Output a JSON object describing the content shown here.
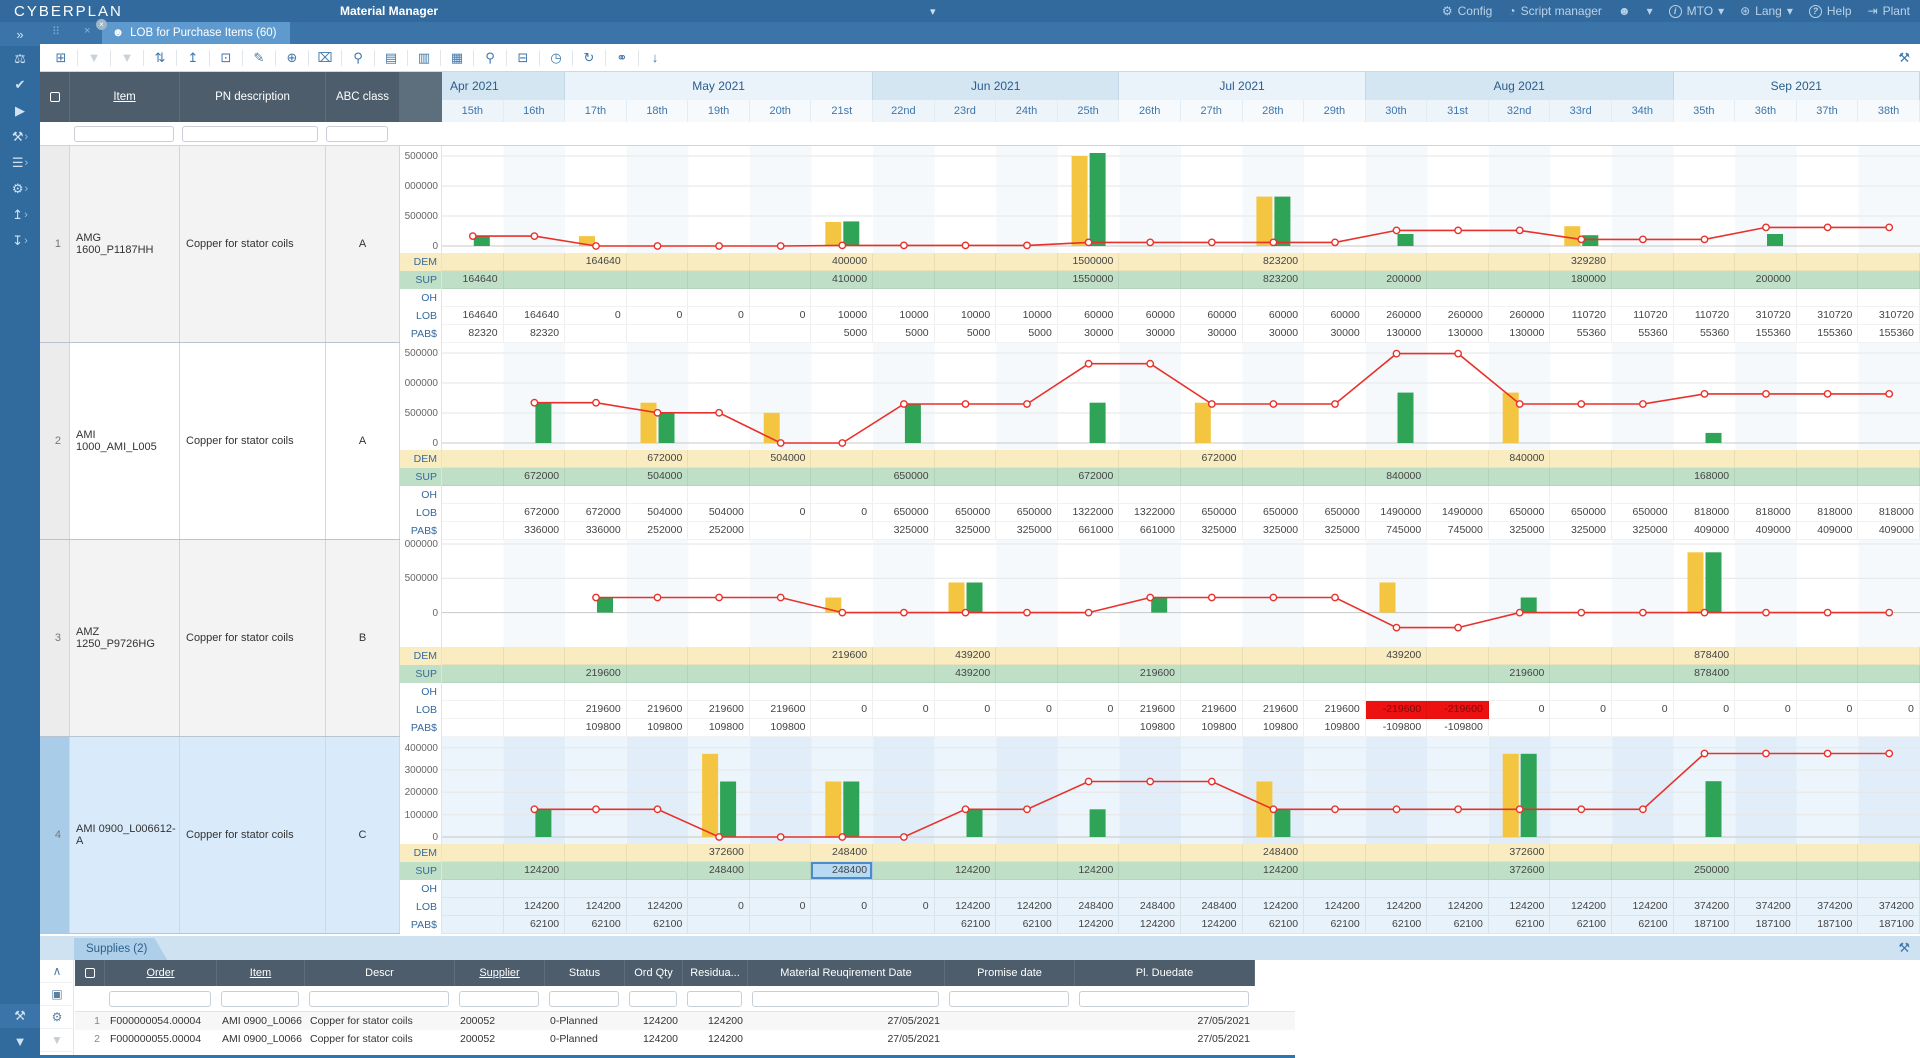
{
  "colors": {
    "topbar_bg": "#336a9e",
    "tab_active_bg": "#5e9ace",
    "header_bg": "#4d5d6b",
    "dem_bg": "#f8ecc0",
    "sup_bg": "#bfe0c6",
    "negative_bg": "#ee1111",
    "bar_yellow": "#f4c540",
    "bar_green": "#2fa356",
    "line_red": "#e8312a",
    "selected_row_bg": "#d9ebfa",
    "selected_cell_bg": "#b8d9f3",
    "month_dark": "#d5e6f3",
    "month_light": "#eaf3fa"
  },
  "topbar": {
    "logo": "CYBERPLAN",
    "app_title": "Material Manager",
    "items": [
      {
        "label": "Config",
        "icon": "gear-icon"
      },
      {
        "label": "Script manager",
        "icon": "dashboard-icon"
      },
      {
        "label": "",
        "icon": "user-icon"
      },
      {
        "label": "",
        "icon": "chevron-down-icon"
      },
      {
        "label": "MTO",
        "icon": "info-icon"
      },
      {
        "label": "Lang",
        "icon": "globe-icon"
      },
      {
        "label": "Help",
        "icon": "help-icon"
      },
      {
        "label": "Plant",
        "icon": "signout-icon"
      }
    ]
  },
  "tabbar": {
    "active_tab": "LOB for Purchase Items (60)"
  },
  "toolbar": {
    "icons": [
      {
        "name": "window-export",
        "disabled": false
      },
      {
        "name": "filter",
        "disabled": true
      },
      {
        "name": "filter-clear",
        "disabled": true
      },
      {
        "name": "sort-vertical",
        "disabled": false
      },
      {
        "name": "share-up",
        "disabled": false
      },
      {
        "name": "external-window",
        "disabled": false
      },
      {
        "name": "edit-pen",
        "disabled": false
      },
      {
        "name": "add-circle",
        "disabled": false
      },
      {
        "name": "trash",
        "disabled": false
      },
      {
        "name": "search-document",
        "disabled": false
      },
      {
        "name": "excel-file",
        "disabled": false
      },
      {
        "name": "pdf-file",
        "disabled": false
      },
      {
        "name": "columns",
        "disabled": false
      },
      {
        "name": "zoom-search",
        "disabled": false
      },
      {
        "name": "calendar",
        "disabled": false
      },
      {
        "name": "clock",
        "disabled": false
      },
      {
        "name": "refresh",
        "disabled": false
      },
      {
        "name": "link",
        "disabled": false
      },
      {
        "name": "arrow-down",
        "disabled": false
      }
    ]
  },
  "sidebar": {
    "icons": [
      "expand",
      "scales",
      "check",
      "play",
      "wrench",
      "database",
      "gear-solid",
      "upload",
      "download"
    ],
    "with_chevron": [
      "wrench",
      "database",
      "gear-solid",
      "upload",
      "download"
    ],
    "bottom_icons": [
      "wrench",
      "filter"
    ]
  },
  "grid": {
    "fixed_headers": {
      "item": "Item",
      "pn": "PN description",
      "abc": "ABC class"
    },
    "row_labels": [
      "DEM",
      "SUP",
      "OH",
      "LOB",
      "PAB$"
    ],
    "months": [
      {
        "label": "Apr 2021",
        "weeks": 2
      },
      {
        "label": "May 2021",
        "weeks": 5
      },
      {
        "label": "Jun 2021",
        "weeks": 4
      },
      {
        "label": "Jul 2021",
        "weeks": 4
      },
      {
        "label": "Aug 2021",
        "weeks": 5
      },
      {
        "label": "Sep 2021",
        "weeks": 4
      }
    ],
    "weeks": [
      "15th",
      "16th",
      "17th",
      "18th",
      "19th",
      "20th",
      "21st",
      "22nd",
      "23rd",
      "24th",
      "25th",
      "26th",
      "27th",
      "28th",
      "29th",
      "30th",
      "31st",
      "32nd",
      "33rd",
      "34th",
      "35th",
      "36th",
      "37th",
      "38th"
    ],
    "items": [
      {
        "num": "1",
        "item": "AMG 1600_P1187HH",
        "description": "Copper for stator coils",
        "abc": "A",
        "y_max": 1600000,
        "y_min": 0,
        "y_ticks": [
          {
            "v": 1500000,
            "label": "500000"
          },
          {
            "v": 1000000,
            "label": "000000"
          },
          {
            "v": 500000,
            "label": "500000"
          },
          {
            "v": 0,
            "label": "0"
          }
        ],
        "dem": [
          "",
          "",
          "164640",
          "",
          "",
          "",
          "400000",
          "",
          "",
          "",
          "1500000",
          "",
          "",
          "823200",
          "",
          "",
          "",
          "",
          "329280",
          "",
          "",
          "",
          "",
          ""
        ],
        "sup": [
          "164640",
          "",
          "",
          "",
          "",
          "",
          "410000",
          "",
          "",
          "",
          "1550000",
          "",
          "",
          "823200",
          "",
          "200000",
          "",
          "",
          "180000",
          "",
          "",
          "200000",
          "",
          ""
        ],
        "lob": [
          "164640",
          "164640",
          "0",
          "0",
          "0",
          "0",
          "10000",
          "10000",
          "10000",
          "10000",
          "60000",
          "60000",
          "60000",
          "60000",
          "60000",
          "260000",
          "260000",
          "260000",
          "110720",
          "110720",
          "110720",
          "310720",
          "310720",
          "310720"
        ],
        "pab": [
          "82320",
          "82320",
          "",
          "",
          "",
          "",
          "5000",
          "5000",
          "5000",
          "5000",
          "30000",
          "30000",
          "30000",
          "30000",
          "30000",
          "130000",
          "130000",
          "130000",
          "55360",
          "55360",
          "55360",
          "155360",
          "155360",
          "155360"
        ]
      },
      {
        "num": "2",
        "item": "AMI 1000_AMI_L005",
        "description": "Copper for stator coils",
        "abc": "A",
        "y_max": 1600000,
        "y_min": 0,
        "y_ticks": [
          {
            "v": 1500000,
            "label": "500000"
          },
          {
            "v": 1000000,
            "label": "000000"
          },
          {
            "v": 500000,
            "label": "500000"
          },
          {
            "v": 0,
            "label": "0"
          }
        ],
        "dem": [
          "",
          "",
          "",
          "672000",
          "",
          "504000",
          "",
          "",
          "",
          "",
          "",
          "",
          "672000",
          "",
          "",
          "",
          "",
          "840000",
          "",
          "",
          "",
          "",
          "",
          ""
        ],
        "sup": [
          "",
          "672000",
          "",
          "504000",
          "",
          "",
          "",
          "650000",
          "",
          "",
          "672000",
          "",
          "",
          "",
          "",
          "840000",
          "",
          "",
          "",
          "",
          "168000",
          "",
          "",
          ""
        ],
        "lob": [
          "",
          "672000",
          "672000",
          "504000",
          "504000",
          "0",
          "0",
          "650000",
          "650000",
          "650000",
          "1322000",
          "1322000",
          "650000",
          "650000",
          "650000",
          "1490000",
          "1490000",
          "650000",
          "650000",
          "650000",
          "818000",
          "818000",
          "818000",
          "818000"
        ],
        "pab": [
          "",
          "336000",
          "336000",
          "252000",
          "252000",
          "",
          "",
          "325000",
          "325000",
          "325000",
          "661000",
          "661000",
          "325000",
          "325000",
          "325000",
          "745000",
          "745000",
          "325000",
          "325000",
          "325000",
          "409000",
          "409000",
          "409000",
          "409000"
        ]
      },
      {
        "num": "3",
        "item": "AMZ 1250_P9726HG",
        "description": "Copper for stator coils",
        "abc": "B",
        "y_max": 1000000,
        "y_min": -400000,
        "y_ticks": [
          {
            "v": 1000000,
            "label": "000000"
          },
          {
            "v": 500000,
            "label": "500000"
          },
          {
            "v": 0,
            "label": "0"
          }
        ],
        "dem": [
          "",
          "",
          "",
          "",
          "",
          "",
          "219600",
          "",
          "439200",
          "",
          "",
          "",
          "",
          "",
          "",
          "439200",
          "",
          "",
          "",
          "",
          "878400",
          "",
          "",
          ""
        ],
        "sup": [
          "",
          "",
          "219600",
          "",
          "",
          "",
          "",
          "",
          "439200",
          "",
          "",
          "219600",
          "",
          "",
          "",
          "",
          "",
          "219600",
          "",
          "",
          "878400",
          "",
          "",
          ""
        ],
        "lob": [
          "",
          "",
          "219600",
          "219600",
          "219600",
          "219600",
          "0",
          "0",
          "0",
          "0",
          "0",
          "219600",
          "219600",
          "219600",
          "219600",
          "-219600",
          "-219600",
          "0",
          "0",
          "0",
          "0",
          "0",
          "0",
          "0"
        ],
        "pab": [
          "",
          "",
          "109800",
          "109800",
          "109800",
          "109800",
          "",
          "",
          "",
          "",
          "",
          "109800",
          "109800",
          "109800",
          "109800",
          "-109800",
          "-109800",
          "",
          "",
          "",
          "",
          "",
          "",
          ""
        ]
      },
      {
        "num": "4",
        "item": "AMI 0900_L006612-A",
        "description": "Copper for stator coils",
        "abc": "C",
        "selected": true,
        "y_max": 430000,
        "y_min": 0,
        "y_ticks": [
          {
            "v": 400000,
            "label": "400000"
          },
          {
            "v": 300000,
            "label": "300000"
          },
          {
            "v": 200000,
            "label": "200000"
          },
          {
            "v": 100000,
            "label": "100000"
          },
          {
            "v": 0,
            "label": "0"
          }
        ],
        "dem": [
          "",
          "",
          "",
          "",
          "372600",
          "",
          "248400",
          "",
          "",
          "",
          "",
          "",
          "",
          "248400",
          "",
          "",
          "",
          "372600",
          "",
          "",
          "",
          "",
          "",
          ""
        ],
        "sup": [
          "",
          "124200",
          "",
          "",
          "248400",
          "",
          "248400",
          "",
          "124200",
          "",
          "124200",
          "",
          "",
          "124200",
          "",
          "",
          "",
          "372600",
          "",
          "",
          "250000",
          "",
          "",
          ""
        ],
        "lob": [
          "",
          "124200",
          "124200",
          "124200",
          "0",
          "0",
          "0",
          "0",
          "124200",
          "124200",
          "248400",
          "248400",
          "248400",
          "124200",
          "124200",
          "124200",
          "124200",
          "124200",
          "124200",
          "124200",
          "374200",
          "374200",
          "374200",
          "374200"
        ],
        "pab": [
          "",
          "62100",
          "62100",
          "62100",
          "",
          "",
          "",
          "",
          "62100",
          "62100",
          "124200",
          "124200",
          "124200",
          "62100",
          "62100",
          "62100",
          "62100",
          "62100",
          "62100",
          "62100",
          "187100",
          "187100",
          "187100",
          "187100"
        ]
      }
    ],
    "selected_cell": {
      "item_index": 3,
      "row": "sup",
      "week_index": 6
    }
  },
  "supplies": {
    "tab_label": "Supplies (2)",
    "rail_icons": [
      "collapse",
      "copy",
      "gear",
      "filter"
    ],
    "headers": [
      {
        "label": "Order",
        "sorted": true
      },
      {
        "label": "Item",
        "sorted": true
      },
      {
        "label": "Descr",
        "sorted": false
      },
      {
        "label": "Supplier",
        "sorted": true
      },
      {
        "label": "Status",
        "sorted": false
      },
      {
        "label": "Ord Qty",
        "sorted": false
      },
      {
        "label": "Residua...",
        "sorted": false
      },
      {
        "label": "Material Reuqirement Date",
        "sorted": false
      },
      {
        "label": "Promise date",
        "sorted": false
      },
      {
        "label": "Pl. Duedate",
        "sorted": false
      }
    ],
    "rows": [
      {
        "num": "1",
        "order": "F000000054.00004",
        "item": "AMI 0900_L0066",
        "descr": "Copper for stator coils",
        "supplier": "200052",
        "status": "0-Planned",
        "ord_qty": "124200",
        "residual": "124200",
        "mrd": "27/05/2021",
        "promise": "",
        "due": "27/05/2021"
      },
      {
        "num": "2",
        "order": "F000000055.00004",
        "item": "AMI 0900_L0066",
        "descr": "Copper for stator coils",
        "supplier": "200052",
        "status": "0-Planned",
        "ord_qty": "124200",
        "residual": "124200",
        "mrd": "27/05/2021",
        "promise": "",
        "due": "27/05/2021"
      }
    ]
  }
}
